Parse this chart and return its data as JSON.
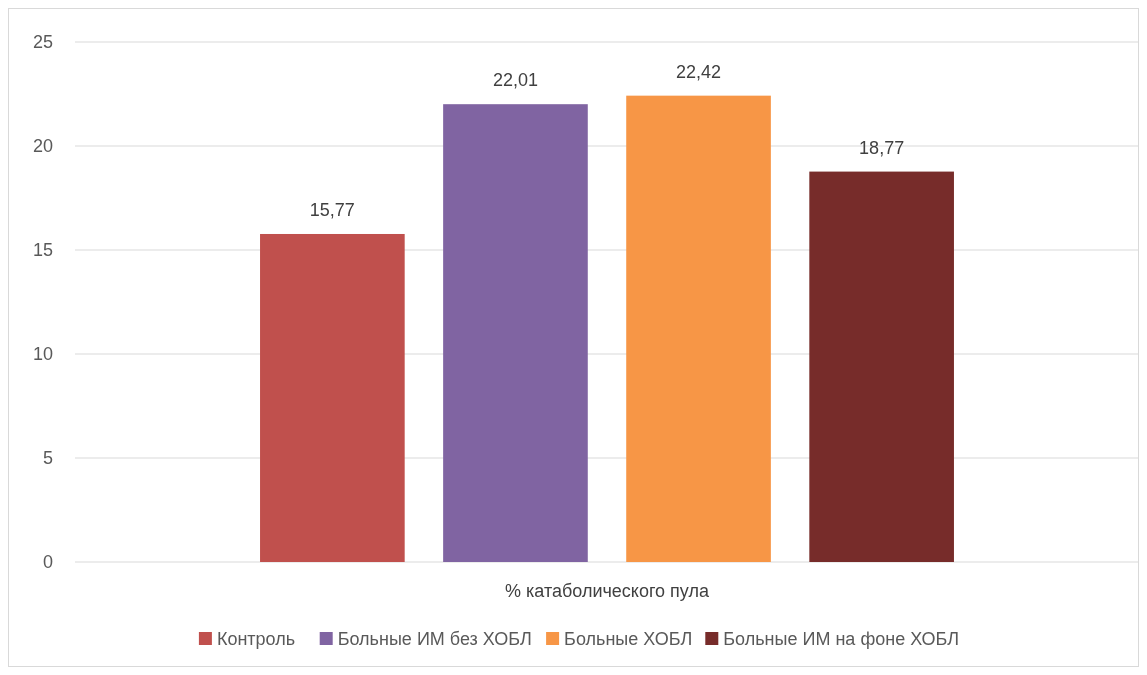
{
  "chart_data": {
    "type": "bar",
    "categories": [
      "% катаболического пула"
    ],
    "series": [
      {
        "name": "Контроль",
        "color": "#c0504d",
        "values": [
          15.77
        ],
        "value_labels": [
          "15,77"
        ]
      },
      {
        "name": "Больные ИМ без ХОБЛ",
        "color": "#8064a2",
        "values": [
          22.01
        ],
        "value_labels": [
          "22,01"
        ]
      },
      {
        "name": "Больные ХОБЛ",
        "color": "#f79646",
        "values": [
          22.42
        ],
        "value_labels": [
          "22,42"
        ]
      },
      {
        "name": "Больные ИМ на фоне ХОБЛ",
        "color": "#772c2a",
        "values": [
          18.77
        ],
        "value_labels": [
          "18,77"
        ]
      }
    ],
    "ylim": [
      0,
      25
    ],
    "yticks": [
      0,
      5,
      10,
      15,
      20,
      25
    ],
    "grid": "y",
    "legend": "bottom"
  }
}
